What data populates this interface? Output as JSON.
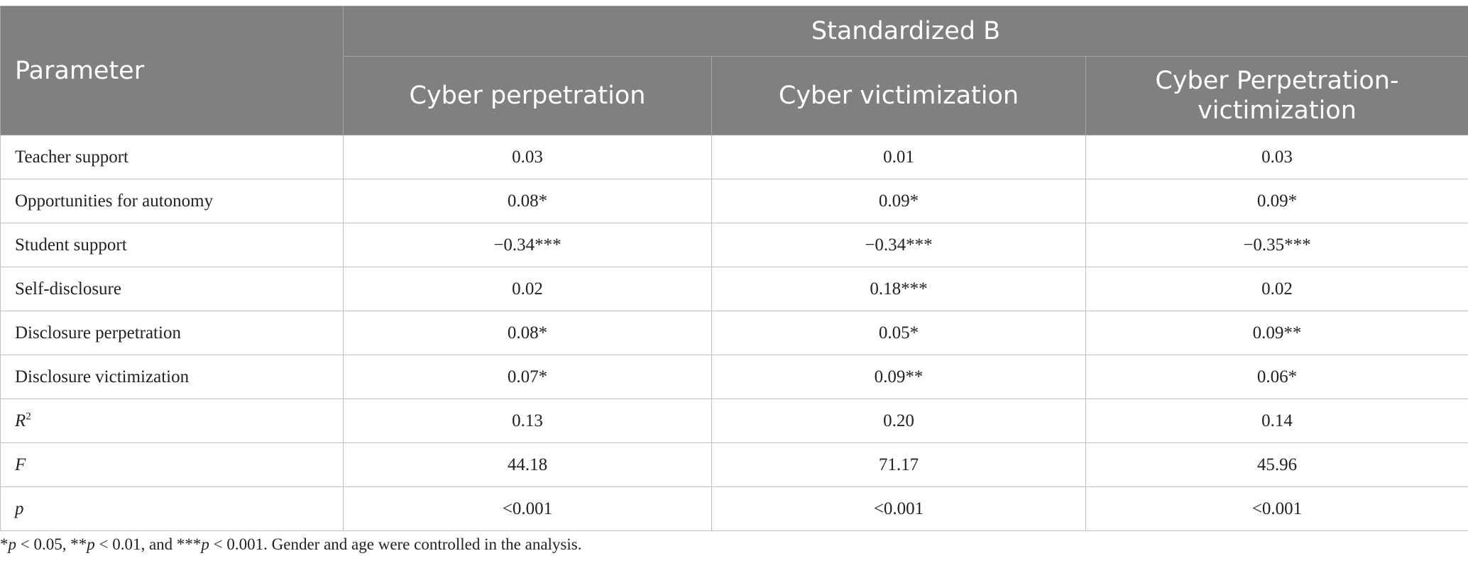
{
  "table": {
    "header": {
      "parameter": "Parameter",
      "group": "Standardized B",
      "columns": [
        "Cyber perpetration",
        "Cyber victimization",
        "Cyber Perpetration-victimization"
      ]
    },
    "rows": [
      {
        "label": "Teacher support",
        "values": [
          "0.03",
          "0.01",
          "0.03"
        ]
      },
      {
        "label": "Opportunities for autonomy",
        "values": [
          "0.08*",
          "0.09*",
          "0.09*"
        ]
      },
      {
        "label": "Student support",
        "values": [
          "−0.34***",
          "−0.34***",
          "−0.35***"
        ]
      },
      {
        "label": "Self-disclosure",
        "values": [
          "0.02",
          "0.18***",
          "0.02"
        ]
      },
      {
        "label": "Disclosure perpetration",
        "values": [
          "0.08*",
          "0.05*",
          "0.09**"
        ]
      },
      {
        "label": "Disclosure victimization",
        "values": [
          "0.07*",
          "0.09**",
          "0.06*"
        ]
      },
      {
        "label": "R",
        "label_sup": "2",
        "values": [
          "0.13",
          "0.20",
          "0.14"
        ]
      },
      {
        "label": "F",
        "values": [
          "44.18",
          "71.17",
          "45.96"
        ]
      },
      {
        "label": "p",
        "values": [
          "<0.001",
          "<0.001",
          "<0.001"
        ]
      }
    ]
  },
  "footnote": {
    "s1": "*",
    "p1": "p",
    "s2": " < 0.05, **",
    "p2": "p",
    "s3": " < 0.01, and ***",
    "p3": "p",
    "s4": " < 0.001. Gender and age were controlled in the analysis."
  }
}
